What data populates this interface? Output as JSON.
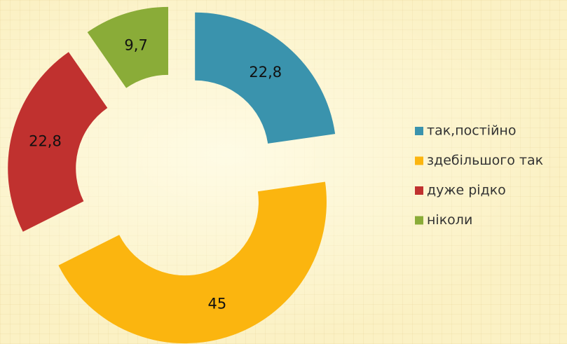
{
  "chart_data": {
    "type": "pie",
    "categories": [
      "так,постійно",
      "здебільшого так",
      "дуже рідко",
      "ніколи"
    ],
    "values": [
      22.8,
      45,
      22.8,
      9.7
    ],
    "value_labels": [
      "22,8",
      "45",
      "22,8",
      "9,7"
    ],
    "colors": [
      "#3a93ad",
      "#fbb50f",
      "#c0312f",
      "#8aac38"
    ],
    "donut": true,
    "exploded": true,
    "legend": "right"
  }
}
